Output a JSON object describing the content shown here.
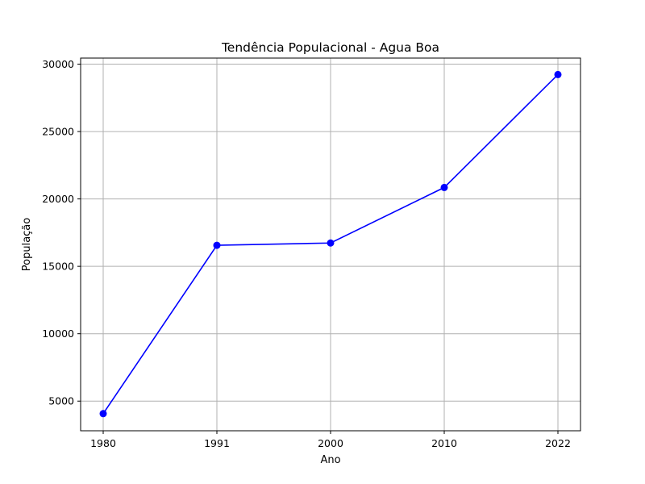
{
  "chart_data": {
    "type": "line",
    "title": "Tendência Populacional - Agua Boa",
    "xlabel": "Ano",
    "ylabel": "População",
    "categories": [
      "1980",
      "1991",
      "2000",
      "2010",
      "2022"
    ],
    "series": [
      {
        "values": [
          4070,
          16560,
          16730,
          20850,
          29230
        ],
        "color": "#0000ff",
        "marker": "circle"
      }
    ],
    "yticks": [
      5000,
      10000,
      15000,
      20000,
      25000,
      30000
    ],
    "ylim": [
      2800,
      30450
    ],
    "grid": true
  }
}
